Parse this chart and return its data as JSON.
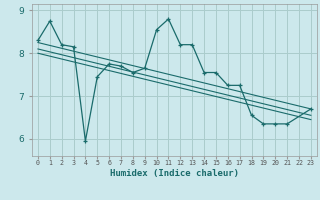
{
  "xlabel": "Humidex (Indice chaleur)",
  "x_values": [
    0,
    1,
    2,
    3,
    4,
    5,
    6,
    7,
    8,
    9,
    10,
    11,
    12,
    13,
    14,
    15,
    16,
    17,
    18,
    19,
    20,
    21,
    22,
    23
  ],
  "main_line": [
    8.3,
    8.75,
    8.2,
    8.15,
    5.95,
    7.45,
    7.75,
    7.7,
    7.55,
    7.65,
    8.55,
    8.8,
    8.2,
    8.2,
    7.55,
    7.55,
    7.25,
    7.25,
    6.55,
    6.35,
    6.35,
    6.35,
    null,
    6.7
  ],
  "trend_line1_start": 8.25,
  "trend_line1_end": 6.7,
  "trend_line2_start": 8.1,
  "trend_line2_end": 6.55,
  "trend_line3_start": 8.0,
  "trend_line3_end": 6.45,
  "bg_color": "#cce8ec",
  "grid_color": "#aacccc",
  "line_color": "#1a6b6b",
  "ylim_min": 5.6,
  "ylim_max": 9.15,
  "yticks": [
    6,
    7,
    8,
    9
  ],
  "xlim_min": -0.5,
  "xlim_max": 23.5
}
